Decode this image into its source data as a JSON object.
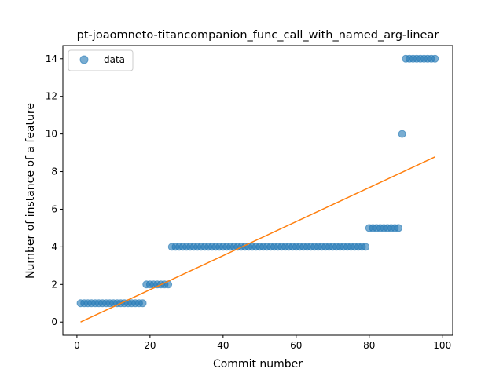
{
  "chart_data": {
    "type": "scatter",
    "title": "pt-joaomneto-titancompanion_func_call_with_named_arg-linear",
    "xlabel": "Commit number",
    "ylabel": "Number of instance of a feature",
    "xlim": [
      -3.85,
      102.85
    ],
    "ylim": [
      -0.7,
      14.7
    ],
    "xticks": [
      0,
      20,
      40,
      60,
      80,
      100
    ],
    "yticks": [
      0,
      2,
      4,
      6,
      8,
      10,
      12,
      14
    ],
    "grid": false,
    "legend": {
      "placement": "top-left",
      "entries": [
        "data"
      ]
    },
    "colors": {
      "data": "#1f77b4",
      "fit": "#ff7f0e"
    },
    "series": [
      {
        "name": "data",
        "kind": "scatter",
        "points": [
          [
            1,
            1
          ],
          [
            2,
            1
          ],
          [
            3,
            1
          ],
          [
            4,
            1
          ],
          [
            5,
            1
          ],
          [
            6,
            1
          ],
          [
            7,
            1
          ],
          [
            8,
            1
          ],
          [
            9,
            1
          ],
          [
            10,
            1
          ],
          [
            11,
            1
          ],
          [
            12,
            1
          ],
          [
            13,
            1
          ],
          [
            14,
            1
          ],
          [
            15,
            1
          ],
          [
            16,
            1
          ],
          [
            17,
            1
          ],
          [
            18,
            1
          ],
          [
            19,
            2
          ],
          [
            20,
            2
          ],
          [
            21,
            2
          ],
          [
            22,
            2
          ],
          [
            23,
            2
          ],
          [
            24,
            2
          ],
          [
            25,
            2
          ],
          [
            26,
            4
          ],
          [
            27,
            4
          ],
          [
            28,
            4
          ],
          [
            29,
            4
          ],
          [
            30,
            4
          ],
          [
            31,
            4
          ],
          [
            32,
            4
          ],
          [
            33,
            4
          ],
          [
            34,
            4
          ],
          [
            35,
            4
          ],
          [
            36,
            4
          ],
          [
            37,
            4
          ],
          [
            38,
            4
          ],
          [
            39,
            4
          ],
          [
            40,
            4
          ],
          [
            41,
            4
          ],
          [
            42,
            4
          ],
          [
            43,
            4
          ],
          [
            44,
            4
          ],
          [
            45,
            4
          ],
          [
            46,
            4
          ],
          [
            47,
            4
          ],
          [
            48,
            4
          ],
          [
            49,
            4
          ],
          [
            50,
            4
          ],
          [
            51,
            4
          ],
          [
            52,
            4
          ],
          [
            53,
            4
          ],
          [
            54,
            4
          ],
          [
            55,
            4
          ],
          [
            56,
            4
          ],
          [
            57,
            4
          ],
          [
            58,
            4
          ],
          [
            59,
            4
          ],
          [
            60,
            4
          ],
          [
            61,
            4
          ],
          [
            62,
            4
          ],
          [
            63,
            4
          ],
          [
            64,
            4
          ],
          [
            65,
            4
          ],
          [
            66,
            4
          ],
          [
            67,
            4
          ],
          [
            68,
            4
          ],
          [
            69,
            4
          ],
          [
            70,
            4
          ],
          [
            71,
            4
          ],
          [
            72,
            4
          ],
          [
            73,
            4
          ],
          [
            74,
            4
          ],
          [
            75,
            4
          ],
          [
            76,
            4
          ],
          [
            77,
            4
          ],
          [
            78,
            4
          ],
          [
            79,
            4
          ],
          [
            80,
            5
          ],
          [
            81,
            5
          ],
          [
            82,
            5
          ],
          [
            83,
            5
          ],
          [
            84,
            5
          ],
          [
            85,
            5
          ],
          [
            86,
            5
          ],
          [
            87,
            5
          ],
          [
            88,
            5
          ],
          [
            89,
            10
          ],
          [
            90,
            14
          ],
          [
            91,
            14
          ],
          [
            92,
            14
          ],
          [
            93,
            14
          ],
          [
            94,
            14
          ],
          [
            95,
            14
          ],
          [
            96,
            14
          ],
          [
            97,
            14
          ],
          [
            98,
            14
          ]
        ]
      },
      {
        "kind": "line",
        "points": [
          [
            1,
            0.0
          ],
          [
            98,
            8.78
          ]
        ]
      }
    ]
  }
}
